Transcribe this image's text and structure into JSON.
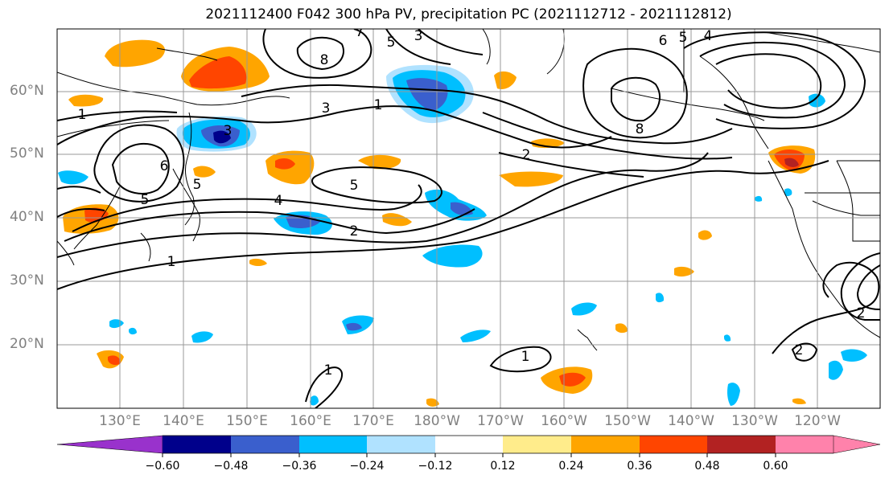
{
  "title": "2021112400 F042 300 hPa PV, precipitation PC (2021112712 - 2021112812)",
  "map": {
    "lat_labels": [
      "60°N",
      "50°N",
      "40°N",
      "30°N",
      "20°N"
    ],
    "lon_labels": [
      "130°E",
      "140°E",
      "150°E",
      "160°E",
      "170°E",
      "180°W",
      "170°W",
      "160°W",
      "150°W",
      "140°W",
      "130°W",
      "120°W"
    ],
    "contour_labels": [
      "1",
      "3",
      "6",
      "5",
      "5",
      "4",
      "2",
      "1",
      "8",
      "5",
      "3",
      "7",
      "1",
      "6",
      "5",
      "4",
      "8",
      "2",
      "5",
      "3",
      "2",
      "1",
      "1",
      "2"
    ],
    "colors": {
      "ocean": "#ffffff",
      "grid": "#999999",
      "contour": "#000000"
    }
  },
  "colorbar": {
    "ticks": [
      "−0.60",
      "−0.48",
      "−0.36",
      "−0.24",
      "−0.12",
      "0.12",
      "0.24",
      "0.36",
      "0.48",
      "0.60"
    ],
    "colors": [
      "#9932cc",
      "#00008b",
      "#3a5fcd",
      "#00bfff",
      "#b0e2ff",
      "#ffffff",
      "#ffec8b",
      "#ffa500",
      "#ff4500",
      "#b22222",
      "#ff82ab"
    ]
  }
}
